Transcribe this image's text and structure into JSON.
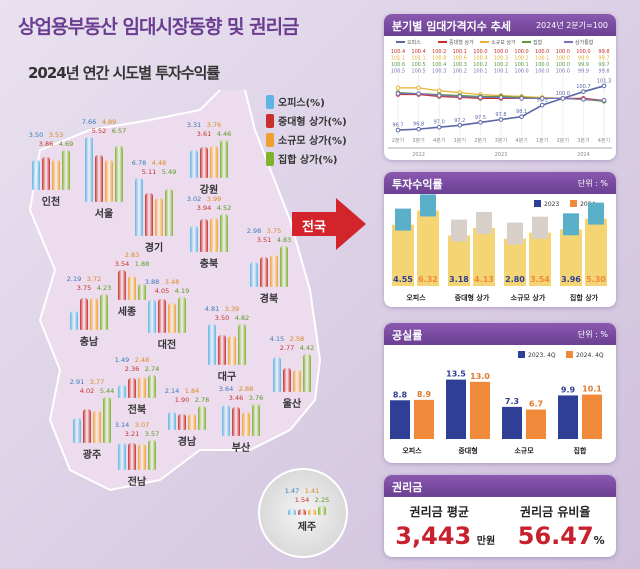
{
  "title": "상업용부동산 임대시장동향 및 권리금",
  "subtitle": "2024년 연간 시도별 투자수익률",
  "legend": [
    "오피스(%)",
    "중대형 상가(%)",
    "소규모 상가(%)",
    "집합 상가(%)"
  ],
  "colors": {
    "office": "#5fb5e6",
    "medium": "#c9302c",
    "small": "#f0a030",
    "collective": "#7fb22e",
    "navy": "#2e3f95",
    "orange": "#f08a3a",
    "title": "#6a3d91",
    "accent": "#c8202c"
  },
  "national_label": "전국",
  "regions": [
    {
      "name": "인천",
      "values": [
        3.5,
        3.86,
        3.53,
        4.69
      ]
    },
    {
      "name": "서울",
      "values": [
        7.66,
        5.52,
        4.89,
        6.57
      ]
    },
    {
      "name": "경기",
      "values": [
        6.78,
        5.11,
        4.48,
        5.49
      ]
    },
    {
      "name": "강원",
      "values": [
        3.31,
        3.61,
        3.76,
        4.46
      ]
    },
    {
      "name": "충북",
      "values": [
        3.02,
        3.94,
        3.99,
        4.52
      ]
    },
    {
      "name": "세종",
      "values": [
        0,
        3.54,
        2.83,
        1.88
      ]
    },
    {
      "name": "충남",
      "values": [
        2.19,
        3.75,
        3.72,
        4.23
      ]
    },
    {
      "name": "대전",
      "values": [
        3.88,
        4.05,
        3.48,
        4.19
      ]
    },
    {
      "name": "경북",
      "values": [
        2.98,
        3.51,
        3.75,
        4.83
      ]
    },
    {
      "name": "대구",
      "values": [
        4.81,
        3.5,
        3.39,
        4.82
      ]
    },
    {
      "name": "울산",
      "values": [
        4.15,
        2.77,
        2.58,
        4.42
      ]
    },
    {
      "name": "전북",
      "values": [
        1.49,
        2.36,
        2.48,
        2.74
      ]
    },
    {
      "name": "광주",
      "values": [
        2.91,
        4.02,
        3.77,
        5.44
      ]
    },
    {
      "name": "경남",
      "values": [
        2.14,
        1.9,
        1.84,
        2.78
      ]
    },
    {
      "name": "부산",
      "values": [
        3.64,
        3.46,
        2.88,
        3.76
      ]
    },
    {
      "name": "전남",
      "values": [
        3.14,
        3.21,
        3.07,
        3.57
      ]
    },
    {
      "name": "제주",
      "values": [
        1.47,
        1.54,
        1.41,
        2.25
      ]
    }
  ],
  "chart_data": [
    {
      "type": "line",
      "title": "분기별 임대가격지수 추세",
      "note": "2024년 2분기=100",
      "categories": [
        "2분기",
        "3분기",
        "4분기",
        "1분기",
        "2분기",
        "3분기",
        "4분기",
        "1분기",
        "2분기",
        "3분기",
        "4분기"
      ],
      "years": [
        "2022",
        "2023",
        "2024"
      ],
      "ylim": [
        96.5,
        101.5
      ],
      "series": [
        {
          "name": "오피스",
          "color": "#5a68a8",
          "values": [
            96.7,
            96.8,
            97.0,
            97.2,
            97.5,
            97.8,
            98.1,
            99.3,
            100.0,
            100.7,
            101.3
          ]
        },
        {
          "name": "중대형 상가",
          "color": "#c9302c",
          "values": [
            100.4,
            100.4,
            100.2,
            100.1,
            100.0,
            100.0,
            100.0,
            100.0,
            100.0,
            100.0,
            99.8
          ]
        },
        {
          "name": "소규모 상가",
          "color": "#e8b030",
          "values": [
            101.1,
            101.1,
            100.8,
            100.6,
            100.4,
            100.3,
            100.2,
            100.1,
            100.0,
            99.9,
            99.7
          ]
        },
        {
          "name": "집합",
          "color": "#5a9a40",
          "values": [
            100.6,
            100.5,
            100.4,
            100.3,
            100.2,
            100.2,
            100.1,
            100.0,
            100.0,
            99.9,
            99.7
          ]
        },
        {
          "name": "상가통합",
          "color": "#7a70b8",
          "values": [
            100.5,
            100.5,
            100.3,
            100.2,
            100.1,
            100.1,
            100.0,
            100.0,
            100.0,
            99.9,
            99.8
          ]
        }
      ]
    },
    {
      "type": "bar",
      "title": "투자수익률",
      "unit": "단위 : %",
      "categories": [
        "오피스",
        "중대형 상가",
        "소규모 상가",
        "집합 상가"
      ],
      "series": [
        {
          "name": "2023",
          "values": [
            4.55,
            3.18,
            2.8,
            3.96
          ]
        },
        {
          "name": "2024",
          "values": [
            6.32,
            4.13,
            3.54,
            5.3
          ]
        }
      ]
    },
    {
      "type": "bar",
      "title": "공실률",
      "unit": "단위 : %",
      "categories": [
        "오피스",
        "중대형",
        "소규모",
        "집합"
      ],
      "ylim": [
        0,
        15
      ],
      "series": [
        {
          "name": "2023. 4Q",
          "values": [
            8.8,
            13.5,
            7.3,
            9.9
          ]
        },
        {
          "name": "2024. 4Q",
          "values": [
            8.9,
            13.0,
            6.7,
            10.1
          ]
        }
      ]
    }
  ],
  "premium": {
    "title": "권리금",
    "avg_label": "권리금 평균",
    "avg_value": "3,443",
    "avg_unit": "만원",
    "rate_label": "권리금 유비율",
    "rate_value": "56.47",
    "rate_unit": "%"
  }
}
